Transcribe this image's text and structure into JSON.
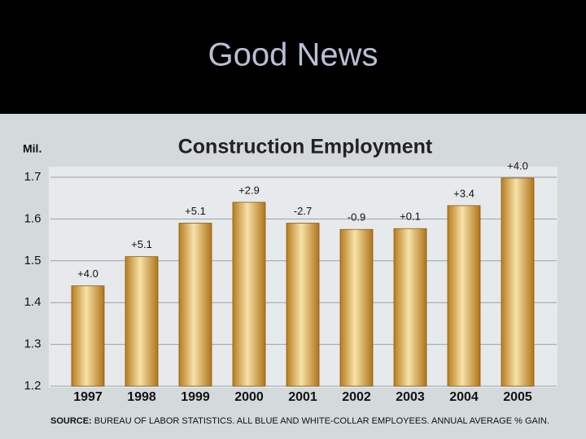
{
  "slide": {
    "title": "Good News"
  },
  "chart_data": {
    "type": "bar",
    "title": "Construction Employment",
    "y_label": "Mil.",
    "categories": [
      "1997",
      "1998",
      "1999",
      "2000",
      "2001",
      "2002",
      "2003",
      "2004",
      "2005"
    ],
    "values": [
      1.44,
      1.51,
      1.59,
      1.64,
      1.59,
      1.575,
      1.577,
      1.632,
      1.698
    ],
    "annotations": [
      "+4.0",
      "+5.1",
      "+5.1",
      "+2.9",
      "-2.7",
      "-0.9",
      "+0.1",
      "+3.4",
      "+4.0"
    ],
    "color": "#c8902a",
    "ylim": [
      1.2,
      1.7
    ],
    "yticks": [
      1.2,
      1.3,
      1.4,
      1.5,
      1.6,
      1.7
    ],
    "grid": true,
    "source_label": "SOURCE:",
    "source": "BUREAU OF LABOR STATISTICS. ALL BLUE AND WHITE-COLLAR EMPLOYEES. ANNUAL AVERAGE % GAIN."
  }
}
